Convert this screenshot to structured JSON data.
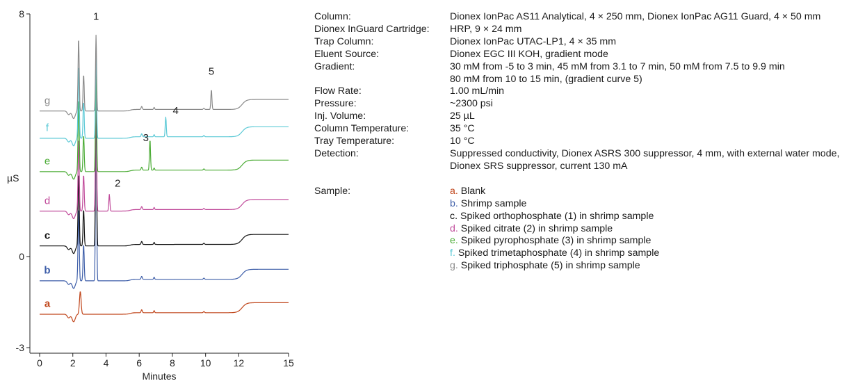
{
  "chart_data": {
    "type": "line",
    "xlabel": "Minutes",
    "ylabel": "µS",
    "xlim": [
      0,
      15
    ],
    "ylim": [
      -3,
      8
    ],
    "xticks": [
      "0",
      "2",
      "4",
      "6",
      "8",
      "10",
      "12",
      "15"
    ],
    "yticks": [
      "-3",
      "0",
      "8"
    ],
    "grid": false,
    "legend": "none",
    "series": [
      {
        "name": "a",
        "color": "#c0461b",
        "baseline": -1.9,
        "peaks": []
      },
      {
        "name": "b",
        "color": "#3c5da8",
        "baseline": -0.8,
        "peaks": [
          {
            "x": 3.4,
            "h": 6.4
          }
        ]
      },
      {
        "name": "c",
        "color": "#111111",
        "baseline": 0.35,
        "peaks": [
          {
            "x": 3.4,
            "h": 5.7
          }
        ]
      },
      {
        "name": "d",
        "color": "#c04a9a",
        "baseline": 1.5,
        "peaks": [
          {
            "x": 3.4,
            "h": 4.5
          },
          {
            "x": 4.2,
            "h": 0.55
          }
        ]
      },
      {
        "name": "e",
        "color": "#4aab34",
        "baseline": 2.8,
        "peaks": [
          {
            "x": 3.4,
            "h": 3.7
          },
          {
            "x": 6.65,
            "h": 1.0
          }
        ]
      },
      {
        "name": "f",
        "color": "#5bc9d6",
        "baseline": 3.9,
        "peaks": [
          {
            "x": 3.4,
            "h": 3.0
          },
          {
            "x": 7.6,
            "h": 0.65
          }
        ]
      },
      {
        "name": "g",
        "color": "#8a8a8a",
        "baseline": 4.8,
        "peaks": [
          {
            "x": 3.4,
            "h": 2.5
          },
          {
            "x": 10.35,
            "h": 0.65
          }
        ]
      }
    ],
    "annotations": [
      {
        "text": "1",
        "x": 3.4,
        "y": 7.8
      },
      {
        "text": "2",
        "x": 4.7,
        "y": 2.3
      },
      {
        "text": "3",
        "x": 6.4,
        "y": 3.8
      },
      {
        "text": "4",
        "x": 8.2,
        "y": 4.7
      },
      {
        "text": "5",
        "x": 10.35,
        "y": 6.0
      }
    ]
  },
  "info": {
    "rows": [
      {
        "label": "Column:",
        "lines": [
          "Dionex IonPac AS11 Analytical, 4 × 250 mm, Dionex IonPac AG11 Guard, 4 × 50 mm"
        ]
      },
      {
        "label": "Dionex InGuard Cartridge:",
        "lines": [
          "HRP, 9 × 24 mm"
        ]
      },
      {
        "label": "Trap Column:",
        "lines": [
          "Dionex IonPac UTAC-LP1, 4 × 35 mm"
        ]
      },
      {
        "label": "Eluent Source:",
        "lines": [
          "Dionex EGC III KOH, gradient mode"
        ]
      },
      {
        "label": "Gradient:",
        "lines": [
          "30 mM from -5 to 3 min, 45 mM from 3.1 to 7 min, 50 mM from 7.5 to 9.9 min",
          "80 mM from 10 to 15 min, (gradient curve 5)"
        ]
      },
      {
        "label": "Flow Rate:",
        "lines": [
          "1.00 mL/min"
        ]
      },
      {
        "label": "Pressure:",
        "lines": [
          "~2300 psi"
        ]
      },
      {
        "label": "Inj. Volume:",
        "lines": [
          "25 µL"
        ]
      },
      {
        "label": "Column Temperature:",
        "lines": [
          "35 °C"
        ]
      },
      {
        "label": "Tray Temperature:",
        "lines": [
          "10 °C"
        ]
      },
      {
        "label": "Detection:",
        "lines": [
          "Suppressed conductivity, Dionex ASRS 300 suppressor, 4 mm, with external water mode,",
          "Dionex SRS suppressor, current 130 mA"
        ]
      }
    ],
    "sample": {
      "label": "Sample:",
      "items": [
        {
          "letter": "a.",
          "text": " Blank",
          "color": "#c0461b"
        },
        {
          "letter": "b.",
          "text": " Shrimp sample",
          "color": "#3c5da8"
        },
        {
          "letter": "c.",
          "text": " Spiked orthophosphate  (1) in shrimp sample",
          "color": "#111111"
        },
        {
          "letter": "d.",
          "text": " Spiked citrate (2) in shrimp sample",
          "color": "#c04a9a"
        },
        {
          "letter": "e.",
          "text": " Spiked pyrophosphate (3) in shrimp sample",
          "color": "#4aab34"
        },
        {
          "letter": "f.",
          "text": " Spiked trimetaphosphate (4) in shrimp sample",
          "color": "#5bc9d6"
        },
        {
          "letter": "g.",
          "text": " Spiked triphosphate (5) in shrimp sample",
          "color": "#8a8a8a"
        }
      ]
    }
  }
}
